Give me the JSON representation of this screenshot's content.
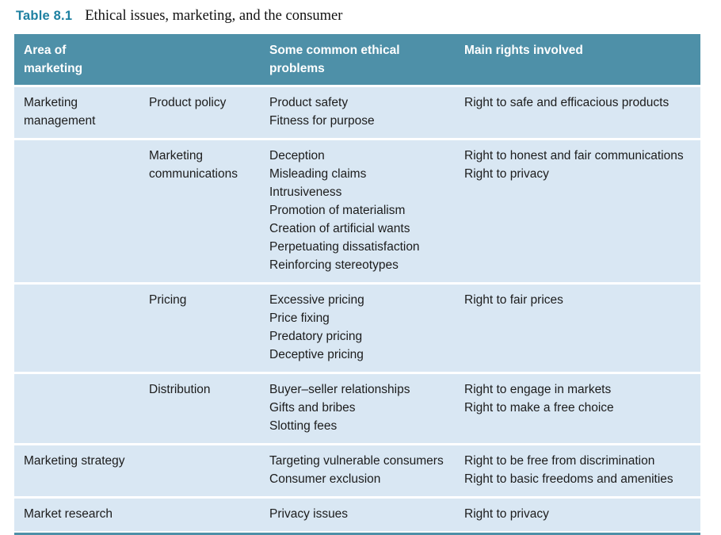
{
  "title": {
    "label": "Table 8.1",
    "text": "Ethical issues, marketing, and the consumer"
  },
  "table": {
    "header": {
      "area": "Area of marketing",
      "problems": "Some common ethical problems",
      "rights": "Main rights involved"
    },
    "rows": [
      {
        "area": "Marketing management",
        "subarea": "Product policy",
        "problems": [
          "Product safety",
          "Fitness for purpose"
        ],
        "rights": [
          "Right to safe and efficacious products"
        ]
      },
      {
        "area": "",
        "subarea": "Marketing communications",
        "problems": [
          "Deception",
          "Misleading claims",
          "Intrusiveness",
          "Promotion of materialism",
          "Creation of artificial wants",
          "Perpetuating dissatisfaction",
          "Reinforcing stereotypes"
        ],
        "rights": [
          "Right to honest and fair communications",
          "Right to privacy"
        ]
      },
      {
        "area": "",
        "subarea": "Pricing",
        "problems": [
          "Excessive pricing",
          "Price fixing",
          "Predatory pricing",
          "Deceptive pricing"
        ],
        "rights": [
          "Right to fair prices"
        ]
      },
      {
        "area": "",
        "subarea": "Distribution",
        "problems": [
          "Buyer–seller relationships",
          "Gifts and bribes",
          "Slotting fees"
        ],
        "rights": [
          "Right to engage in markets",
          "Right to make a free choice"
        ]
      },
      {
        "area": "Marketing strategy",
        "subarea": "",
        "problems": [
          "Targeting vulnerable consumers",
          "Consumer exclusion"
        ],
        "rights": [
          "Right to be free from discrimination",
          "Right to basic freedoms and amenities"
        ]
      },
      {
        "area": "Market research",
        "subarea": "",
        "problems": [
          "Privacy issues"
        ],
        "rights": [
          "Right to privacy"
        ]
      }
    ]
  },
  "colors": {
    "header_bg": "#4e90a8",
    "row_bg": "#d9e7f3",
    "caption_accent": "#1d80a1",
    "bottom_border": "#4e90a8",
    "header_text": "#ffffff",
    "body_text": "#1c1c1c"
  }
}
